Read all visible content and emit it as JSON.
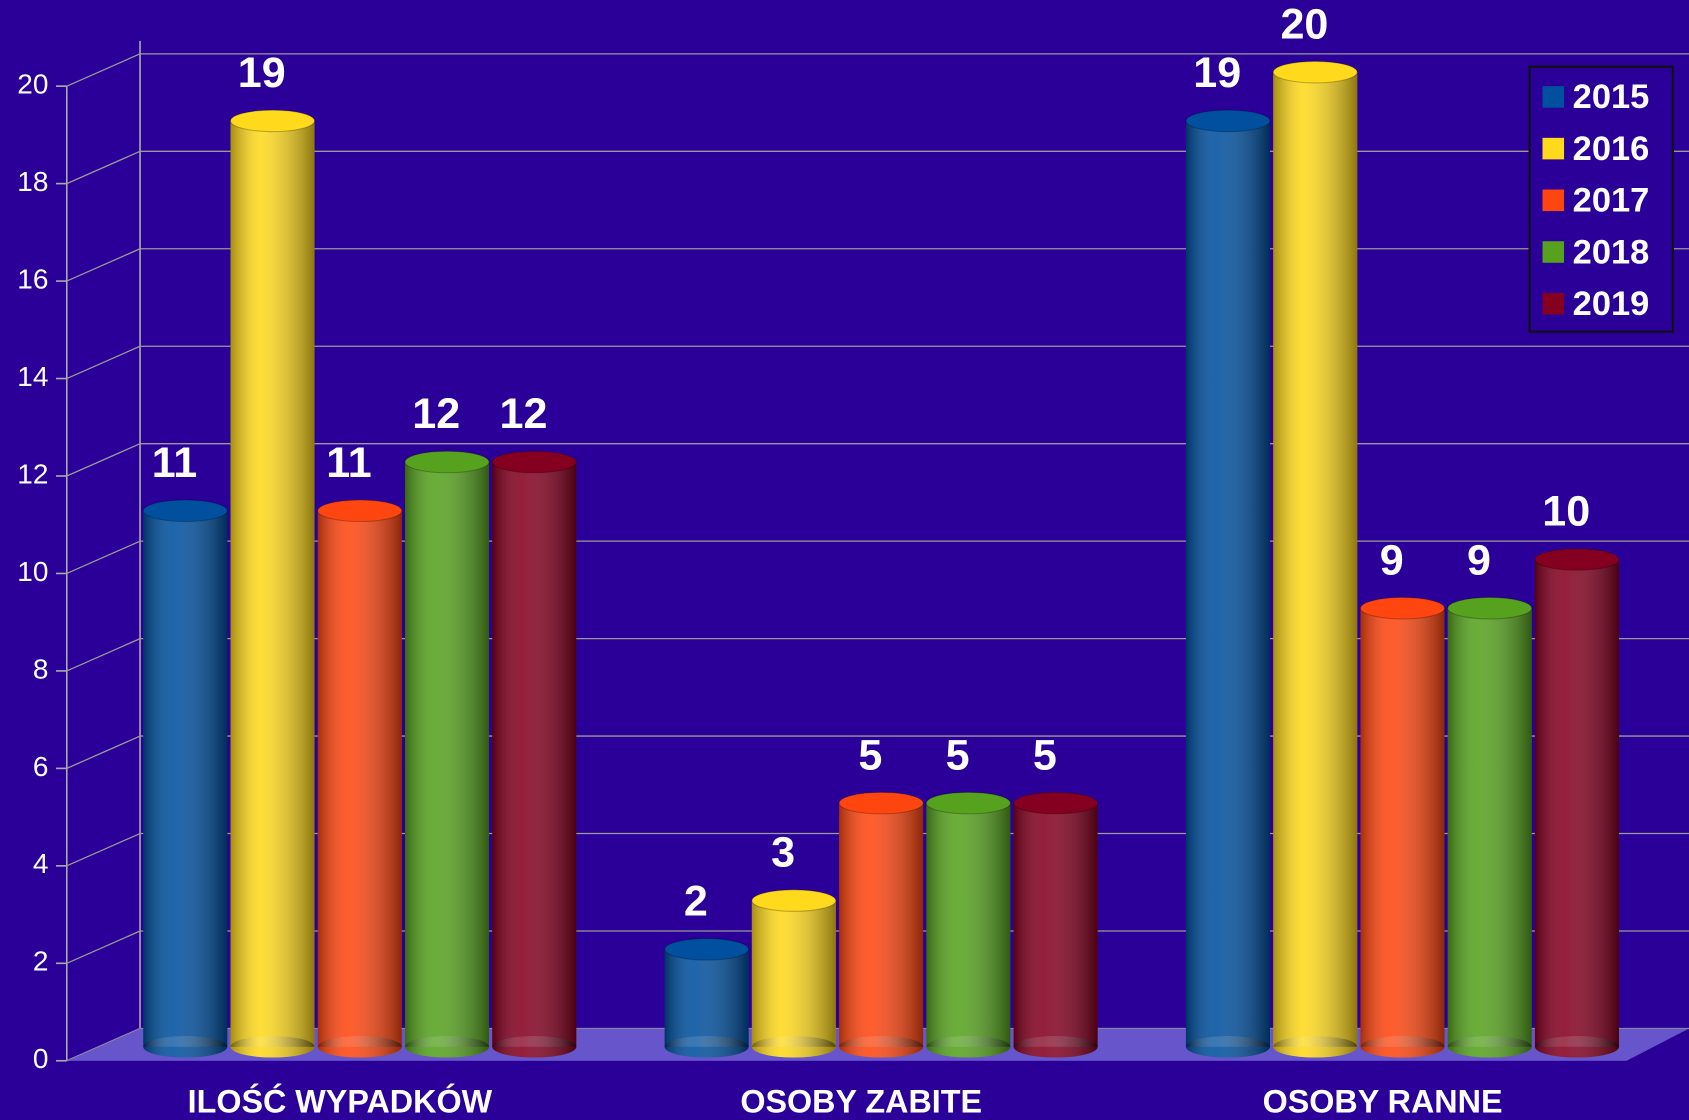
{
  "chart_data": {
    "type": "bar3d",
    "categories": [
      "ILOŚĆ WYPADKÓW",
      "OSOBY ZABITE",
      "OSOBY RANNE"
    ],
    "series": [
      {
        "name": "2015",
        "color": "#00509f",
        "values": [
          11,
          2,
          19
        ]
      },
      {
        "name": "2016",
        "color": "#ffd91c",
        "values": [
          19,
          3,
          20
        ]
      },
      {
        "name": "2017",
        "color": "#ff4610",
        "values": [
          11,
          5,
          9
        ]
      },
      {
        "name": "2018",
        "color": "#56a21e",
        "values": [
          12,
          5,
          9
        ]
      },
      {
        "name": "2019",
        "color": "#850020",
        "values": [
          12,
          5,
          10
        ]
      }
    ],
    "ylim": [
      0,
      20
    ],
    "yticks": [
      0,
      2,
      4,
      6,
      8,
      10,
      12,
      14,
      16,
      18,
      20
    ],
    "grid": true,
    "legend": "top-right"
  }
}
